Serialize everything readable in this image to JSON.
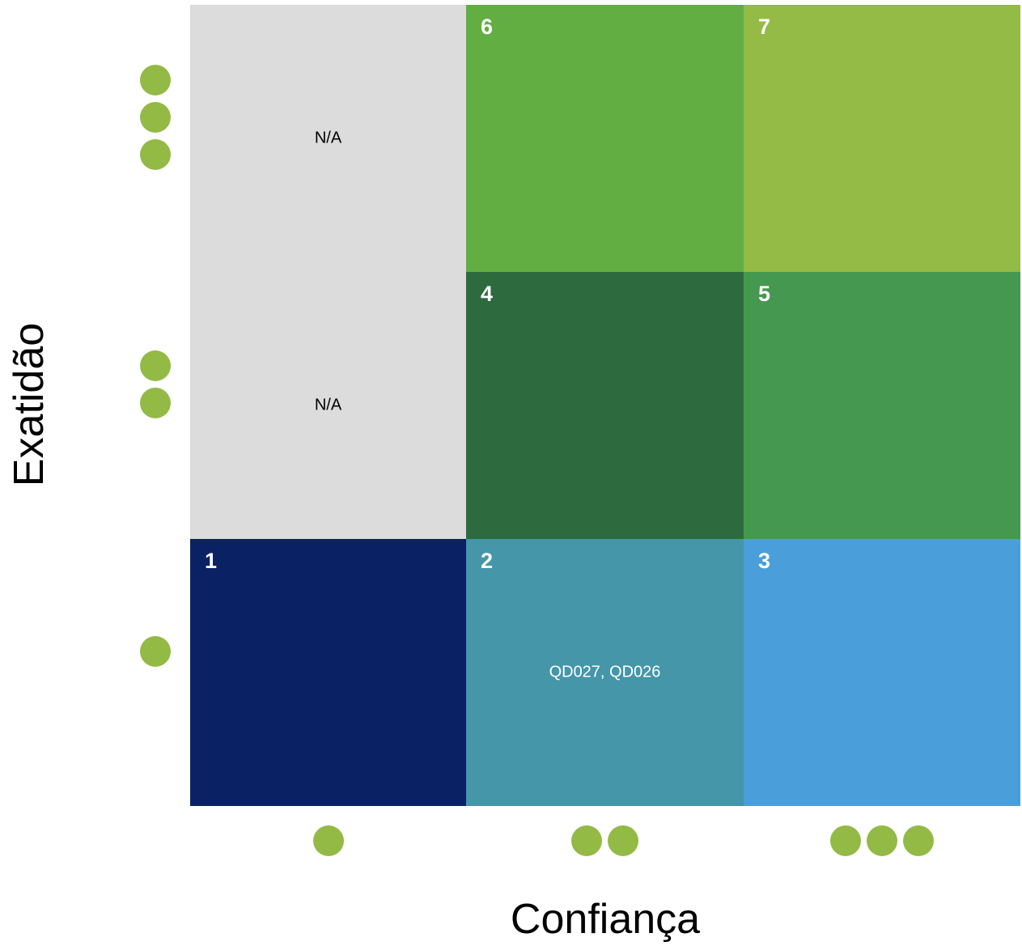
{
  "chart_data": {
    "type": "heatmap",
    "title": "",
    "xlabel": "Confiança",
    "ylabel": "Exatidão",
    "x_levels": [
      1,
      2,
      3
    ],
    "y_levels": [
      1,
      2,
      3
    ],
    "dot_color": "#93BA45",
    "cells": [
      {
        "col": 1,
        "row": 3,
        "number": "",
        "text": "N/A",
        "color": "#DCDCDC",
        "text_color": "#000000"
      },
      {
        "col": 2,
        "row": 3,
        "number": "6",
        "text": "",
        "color": "#63AE43",
        "text_color": "#FFFFFF"
      },
      {
        "col": 3,
        "row": 3,
        "number": "7",
        "text": "",
        "color": "#93BB45",
        "text_color": "#FFFFFF"
      },
      {
        "col": 1,
        "row": 2,
        "number": "",
        "text": "N/A",
        "color": "#DCDCDC",
        "text_color": "#000000"
      },
      {
        "col": 2,
        "row": 2,
        "number": "4",
        "text": "",
        "color": "#2D6A3E",
        "text_color": "#FFFFFF"
      },
      {
        "col": 3,
        "row": 2,
        "number": "5",
        "text": "",
        "color": "#45984F",
        "text_color": "#FFFFFF"
      },
      {
        "col": 1,
        "row": 1,
        "number": "1",
        "text": "",
        "color": "#0A2163",
        "text_color": "#FFFFFF"
      },
      {
        "col": 2,
        "row": 1,
        "number": "2",
        "text": "QD027, QD026",
        "color": "#4496A8",
        "text_color": "#FFFFFF"
      },
      {
        "col": 3,
        "row": 1,
        "number": "3",
        "text": "",
        "color": "#4A9FDB",
        "text_color": "#FFFFFF"
      }
    ]
  }
}
